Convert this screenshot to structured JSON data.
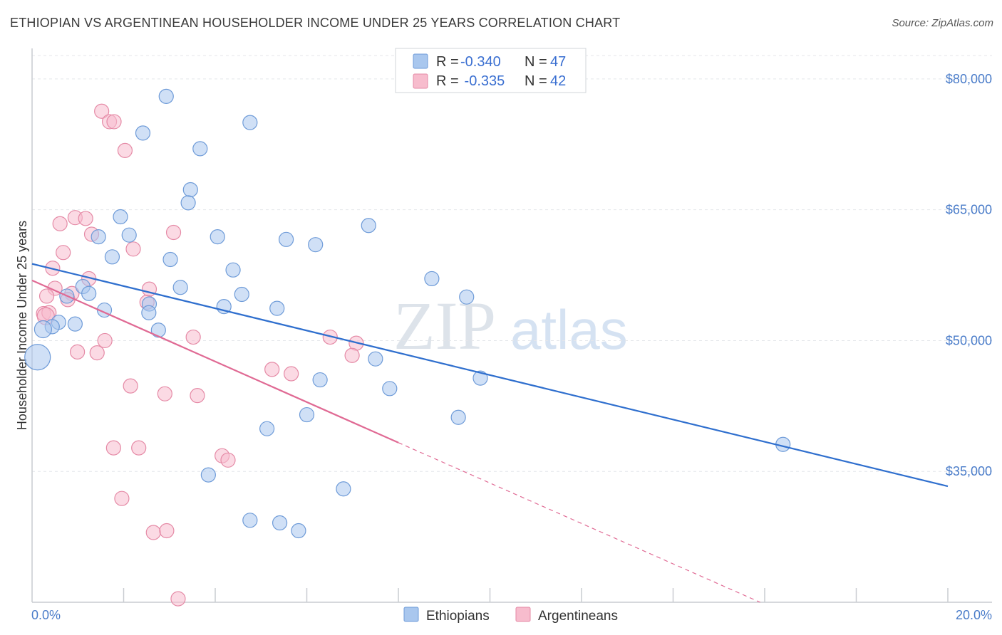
{
  "header": {
    "title": "ETHIOPIAN VS ARGENTINEAN HOUSEHOLDER INCOME UNDER 25 YEARS CORRELATION CHART",
    "source": "Source: ZipAtlas.com"
  },
  "watermark": {
    "zip": "ZIP",
    "atlas": "atlas"
  },
  "legend_top": [
    {
      "r_label": "R = ",
      "r_value": "-0.340",
      "n_label": "N = ",
      "n_value": "47"
    },
    {
      "r_label": "R = ",
      "r_value": " -0.335",
      "n_label": "N = ",
      "n_value": "42"
    }
  ],
  "legend_bottom": [
    {
      "label": "Ethiopians"
    },
    {
      "label": "Argentineans"
    }
  ],
  "chart_data": {
    "type": "scatter",
    "ylabel": "Householder Income Under 25 years",
    "xlim": [
      0,
      20
    ],
    "ylim": [
      20000,
      83500
    ],
    "x_tick_labels": [
      "0.0%",
      "20.0%"
    ],
    "y_ticks": [
      35000,
      50000,
      65000,
      80000
    ],
    "y_tick_labels": [
      "$35,000",
      "$50,000",
      "$65,000",
      "$80,000"
    ],
    "grid": true,
    "colors": {
      "ethiopians_fill": "#a9c7ee",
      "ethiopians_stroke": "#6e9bd8",
      "ethiopians_line": "#2f6fce",
      "argentineans_fill": "#f7bccd",
      "argentineans_stroke": "#e58aa6",
      "argentineans_line": "#e06a94"
    },
    "series": [
      {
        "name": "Ethiopians",
        "trend": {
          "x0": 0,
          "y0": 58800,
          "x1": 20,
          "y1": 33300
        },
        "points": [
          [
            2.93,
            78000
          ],
          [
            4.76,
            75000
          ],
          [
            2.42,
            73800
          ],
          [
            3.67,
            72000
          ],
          [
            3.46,
            67300
          ],
          [
            3.41,
            65800
          ],
          [
            1.93,
            64200
          ],
          [
            7.35,
            63200
          ],
          [
            1.45,
            61900
          ],
          [
            2.12,
            62100
          ],
          [
            4.05,
            61900
          ],
          [
            5.55,
            61600
          ],
          [
            6.19,
            61000
          ],
          [
            1.75,
            59600
          ],
          [
            3.02,
            59300
          ],
          [
            4.39,
            58100
          ],
          [
            8.73,
            57100
          ],
          [
            1.11,
            56200
          ],
          [
            3.24,
            56100
          ],
          [
            1.24,
            55400
          ],
          [
            4.58,
            55300
          ],
          [
            9.49,
            55000
          ],
          [
            0.76,
            55100
          ],
          [
            2.56,
            54200
          ],
          [
            4.19,
            53900
          ],
          [
            5.35,
            53700
          ],
          [
            1.58,
            53500
          ],
          [
            2.55,
            53200
          ],
          [
            0.58,
            52100
          ],
          [
            0.94,
            51900
          ],
          [
            0.44,
            51600
          ],
          [
            2.76,
            51200
          ],
          [
            0.24,
            51300
          ],
          [
            0.12,
            48100
          ],
          [
            7.5,
            47900
          ],
          [
            9.79,
            45700
          ],
          [
            6.29,
            45500
          ],
          [
            7.81,
            44500
          ],
          [
            6.0,
            41500
          ],
          [
            9.31,
            41200
          ],
          [
            5.13,
            39900
          ],
          [
            16.4,
            38100
          ],
          [
            3.85,
            34600
          ],
          [
            6.8,
            33000
          ],
          [
            4.76,
            29400
          ],
          [
            5.41,
            29100
          ],
          [
            5.82,
            28200
          ]
        ],
        "sizes": [
          10,
          10,
          10,
          10,
          10,
          10,
          10,
          10,
          10,
          10,
          10,
          10,
          10,
          10,
          10,
          10,
          10,
          10,
          10,
          10,
          10,
          10,
          10,
          10,
          10,
          10,
          10,
          10,
          10,
          10,
          10,
          10,
          12,
          18,
          10,
          10,
          10,
          10,
          10,
          10,
          10,
          10,
          10,
          10,
          10,
          10,
          10
        ]
      },
      {
        "name": "Argentineans",
        "trend": {
          "x0": 0,
          "y0": 56900,
          "x1": 8.0,
          "y1": 38300
        },
        "trend_dash": {
          "x0": 8.0,
          "y0": 38300,
          "x1": 15.9,
          "y1": 20000
        },
        "points": [
          [
            1.52,
            76300
          ],
          [
            1.69,
            75100
          ],
          [
            1.79,
            75100
          ],
          [
            2.03,
            71800
          ],
          [
            0.94,
            64100
          ],
          [
            1.17,
            64000
          ],
          [
            0.61,
            63400
          ],
          [
            1.3,
            62200
          ],
          [
            3.09,
            62400
          ],
          [
            2.21,
            60500
          ],
          [
            0.68,
            60100
          ],
          [
            0.45,
            58300
          ],
          [
            1.24,
            57100
          ],
          [
            0.5,
            56000
          ],
          [
            2.56,
            55900
          ],
          [
            0.87,
            55400
          ],
          [
            0.32,
            55100
          ],
          [
            0.78,
            54700
          ],
          [
            2.51,
            54400
          ],
          [
            0.25,
            53100
          ],
          [
            0.37,
            53200
          ],
          [
            0.3,
            52800
          ],
          [
            3.52,
            50400
          ],
          [
            6.51,
            50400
          ],
          [
            1.59,
            50000
          ],
          [
            7.08,
            49700
          ],
          [
            0.99,
            48700
          ],
          [
            1.42,
            48600
          ],
          [
            6.99,
            48300
          ],
          [
            5.24,
            46700
          ],
          [
            5.66,
            46200
          ],
          [
            2.15,
            44800
          ],
          [
            2.9,
            43900
          ],
          [
            3.61,
            43700
          ],
          [
            1.78,
            37700
          ],
          [
            2.33,
            37700
          ],
          [
            4.15,
            36800
          ],
          [
            4.28,
            36300
          ],
          [
            1.96,
            31900
          ],
          [
            2.65,
            28000
          ],
          [
            2.94,
            28200
          ],
          [
            3.19,
            20400
          ]
        ],
        "sizes": [
          10,
          10,
          10,
          10,
          10,
          10,
          10,
          10,
          10,
          10,
          10,
          10,
          10,
          10,
          10,
          10,
          10,
          10,
          10,
          10,
          10,
          12,
          10,
          10,
          10,
          10,
          10,
          10,
          10,
          10,
          10,
          10,
          10,
          10,
          10,
          10,
          10,
          10,
          10,
          10,
          10,
          10
        ]
      }
    ]
  }
}
